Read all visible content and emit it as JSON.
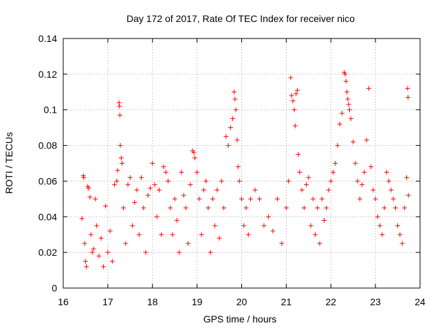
{
  "chart_data": {
    "type": "scatter",
    "title": "Day 172 of 2017, Rate Of TEC Index for receiver nico",
    "xlabel": "GPS time / hours",
    "ylabel": "ROTI / TECUs",
    "xlim": [
      16,
      24
    ],
    "ylim": [
      0,
      0.14
    ],
    "grid": true,
    "marker": "+",
    "marker_color": "#ff0000",
    "x_ticks": [
      16,
      17,
      18,
      19,
      20,
      21,
      22,
      23,
      24
    ],
    "x_tick_labels": [
      "16",
      "17",
      "18",
      "19",
      "20",
      "21",
      "22",
      "23",
      "24"
    ],
    "y_ticks": [
      0,
      0.02,
      0.04,
      0.06,
      0.08,
      0.1,
      0.12,
      0.14
    ],
    "y_tick_labels": [
      "0",
      "0.02",
      "0.04",
      "0.06",
      "0.08",
      "0.1",
      "0.12",
      "0.14"
    ],
    "series": [
      {
        "name": "ROTI",
        "points": [
          [
            16.42,
            0.039
          ],
          [
            16.45,
            0.063
          ],
          [
            16.46,
            0.062
          ],
          [
            16.48,
            0.025
          ],
          [
            16.5,
            0.015
          ],
          [
            16.52,
            0.012
          ],
          [
            16.55,
            0.057
          ],
          [
            16.57,
            0.056
          ],
          [
            16.6,
            0.051
          ],
          [
            16.62,
            0.03
          ],
          [
            16.65,
            0.02
          ],
          [
            16.68,
            0.022
          ],
          [
            16.72,
            0.05
          ],
          [
            16.75,
            0.035
          ],
          [
            16.8,
            0.018
          ],
          [
            16.85,
            0.028
          ],
          [
            16.9,
            0.012
          ],
          [
            16.95,
            0.046
          ],
          [
            17.0,
            0.02
          ],
          [
            17.05,
            0.032
          ],
          [
            17.1,
            0.015
          ],
          [
            17.15,
            0.058
          ],
          [
            17.2,
            0.06
          ],
          [
            17.22,
            0.066
          ],
          [
            17.25,
            0.104
          ],
          [
            17.26,
            0.102
          ],
          [
            17.27,
            0.097
          ],
          [
            17.28,
            0.08
          ],
          [
            17.3,
            0.073
          ],
          [
            17.32,
            0.07
          ],
          [
            17.35,
            0.045
          ],
          [
            17.4,
            0.025
          ],
          [
            17.45,
            0.058
          ],
          [
            17.5,
            0.062
          ],
          [
            17.55,
            0.035
          ],
          [
            17.6,
            0.048
          ],
          [
            17.65,
            0.055
          ],
          [
            17.7,
            0.03
          ],
          [
            17.75,
            0.062
          ],
          [
            17.8,
            0.045
          ],
          [
            17.85,
            0.02
          ],
          [
            17.9,
            0.052
          ],
          [
            17.95,
            0.056
          ],
          [
            18.0,
            0.07
          ],
          [
            18.05,
            0.058
          ],
          [
            18.1,
            0.04
          ],
          [
            18.15,
            0.055
          ],
          [
            18.2,
            0.03
          ],
          [
            18.25,
            0.068
          ],
          [
            18.3,
            0.065
          ],
          [
            18.35,
            0.06
          ],
          [
            18.4,
            0.045
          ],
          [
            18.45,
            0.03
          ],
          [
            18.5,
            0.05
          ],
          [
            18.55,
            0.038
          ],
          [
            18.6,
            0.02
          ],
          [
            18.65,
            0.065
          ],
          [
            18.7,
            0.052
          ],
          [
            18.75,
            0.045
          ],
          [
            18.8,
            0.025
          ],
          [
            18.85,
            0.058
          ],
          [
            18.9,
            0.077
          ],
          [
            18.93,
            0.076
          ],
          [
            18.95,
            0.073
          ],
          [
            19.0,
            0.065
          ],
          [
            19.05,
            0.05
          ],
          [
            19.1,
            0.03
          ],
          [
            19.15,
            0.055
          ],
          [
            19.2,
            0.06
          ],
          [
            19.25,
            0.045
          ],
          [
            19.3,
            0.02
          ],
          [
            19.35,
            0.05
          ],
          [
            19.4,
            0.035
          ],
          [
            19.45,
            0.055
          ],
          [
            19.5,
            0.028
          ],
          [
            19.55,
            0.06
          ],
          [
            19.6,
            0.045
          ],
          [
            19.65,
            0.085
          ],
          [
            19.7,
            0.08
          ],
          [
            19.75,
            0.09
          ],
          [
            19.8,
            0.095
          ],
          [
            19.83,
            0.11
          ],
          [
            19.85,
            0.106
          ],
          [
            19.87,
            0.1
          ],
          [
            19.9,
            0.083
          ],
          [
            19.92,
            0.068
          ],
          [
            19.95,
            0.06
          ],
          [
            20.0,
            0.05
          ],
          [
            20.05,
            0.035
          ],
          [
            20.1,
            0.045
          ],
          [
            20.15,
            0.03
          ],
          [
            20.2,
            0.05
          ],
          [
            20.3,
            0.055
          ],
          [
            20.4,
            0.05
          ],
          [
            20.5,
            0.035
          ],
          [
            20.6,
            0.04
          ],
          [
            20.7,
            0.032
          ],
          [
            20.8,
            0.05
          ],
          [
            20.9,
            0.025
          ],
          [
            21.0,
            0.045
          ],
          [
            21.05,
            0.06
          ],
          [
            21.1,
            0.118
          ],
          [
            21.12,
            0.108
          ],
          [
            21.15,
            0.105
          ],
          [
            21.18,
            0.1
          ],
          [
            21.2,
            0.091
          ],
          [
            21.22,
            0.109
          ],
          [
            21.25,
            0.111
          ],
          [
            21.27,
            0.075
          ],
          [
            21.3,
            0.065
          ],
          [
            21.35,
            0.055
          ],
          [
            21.4,
            0.045
          ],
          [
            21.45,
            0.058
          ],
          [
            21.5,
            0.062
          ],
          [
            21.55,
            0.035
          ],
          [
            21.6,
            0.05
          ],
          [
            21.65,
            0.03
          ],
          [
            21.7,
            0.045
          ],
          [
            21.75,
            0.025
          ],
          [
            21.8,
            0.05
          ],
          [
            21.85,
            0.038
          ],
          [
            21.9,
            0.045
          ],
          [
            21.95,
            0.055
          ],
          [
            22.0,
            0.06
          ],
          [
            22.05,
            0.065
          ],
          [
            22.1,
            0.07
          ],
          [
            22.15,
            0.08
          ],
          [
            22.2,
            0.092
          ],
          [
            22.25,
            0.098
          ],
          [
            22.3,
            0.121
          ],
          [
            22.32,
            0.12
          ],
          [
            22.34,
            0.116
          ],
          [
            22.36,
            0.11
          ],
          [
            22.38,
            0.106
          ],
          [
            22.4,
            0.103
          ],
          [
            22.42,
            0.1
          ],
          [
            22.45,
            0.095
          ],
          [
            22.5,
            0.082
          ],
          [
            22.55,
            0.07
          ],
          [
            22.6,
            0.06
          ],
          [
            22.65,
            0.05
          ],
          [
            22.7,
            0.058
          ],
          [
            22.75,
            0.065
          ],
          [
            22.8,
            0.083
          ],
          [
            22.85,
            0.112
          ],
          [
            22.9,
            0.068
          ],
          [
            22.95,
            0.055
          ],
          [
            23.0,
            0.05
          ],
          [
            23.05,
            0.04
          ],
          [
            23.1,
            0.035
          ],
          [
            23.15,
            0.03
          ],
          [
            23.2,
            0.045
          ],
          [
            23.25,
            0.065
          ],
          [
            23.3,
            0.06
          ],
          [
            23.35,
            0.055
          ],
          [
            23.4,
            0.05
          ],
          [
            23.45,
            0.045
          ],
          [
            23.5,
            0.035
          ],
          [
            23.55,
            0.03
          ],
          [
            23.6,
            0.025
          ],
          [
            23.65,
            0.045
          ],
          [
            23.7,
            0.062
          ],
          [
            23.72,
            0.112
          ],
          [
            23.73,
            0.107
          ],
          [
            23.74,
            0.052
          ]
        ]
      }
    ]
  }
}
